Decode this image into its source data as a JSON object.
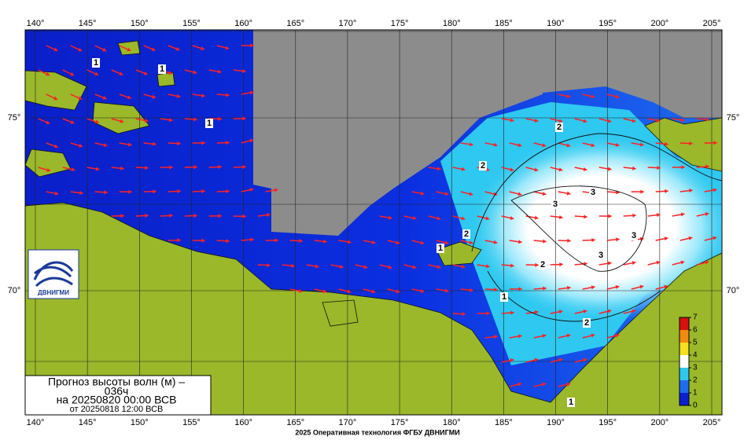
{
  "title": {
    "line1": "Прогноз высоты волн (м) –",
    "line2": "036ч",
    "line3": "на 20250820 00:00 ВСВ",
    "line4": "от 20250818 12:00 ВСВ"
  },
  "longitude_labels": [
    "140°",
    "145°",
    "150°",
    "155°",
    "160°",
    "165°",
    "170°",
    "175°",
    "180°",
    "185°",
    "190°",
    "195°",
    "200°",
    "205°"
  ],
  "latitude_labels": [
    "75°",
    "70°"
  ],
  "contour_labels": [
    "1",
    "1",
    "1",
    "1",
    "1",
    "1",
    "2",
    "2",
    "2",
    "2",
    "2",
    "3",
    "3",
    "3",
    "3"
  ],
  "colorbar": {
    "ticks": [
      0,
      1,
      2,
      3,
      4,
      5,
      6,
      7
    ],
    "colors": [
      "#0a1fd0",
      "#1e6cf0",
      "#2ec8f0",
      "#ffffff",
      "#f5e020",
      "#f08a10",
      "#d81010"
    ]
  },
  "logo": "ДВНИГМИ",
  "footer": "2025 Оперативная технология ФГБУ ДВНИГМИ"
}
